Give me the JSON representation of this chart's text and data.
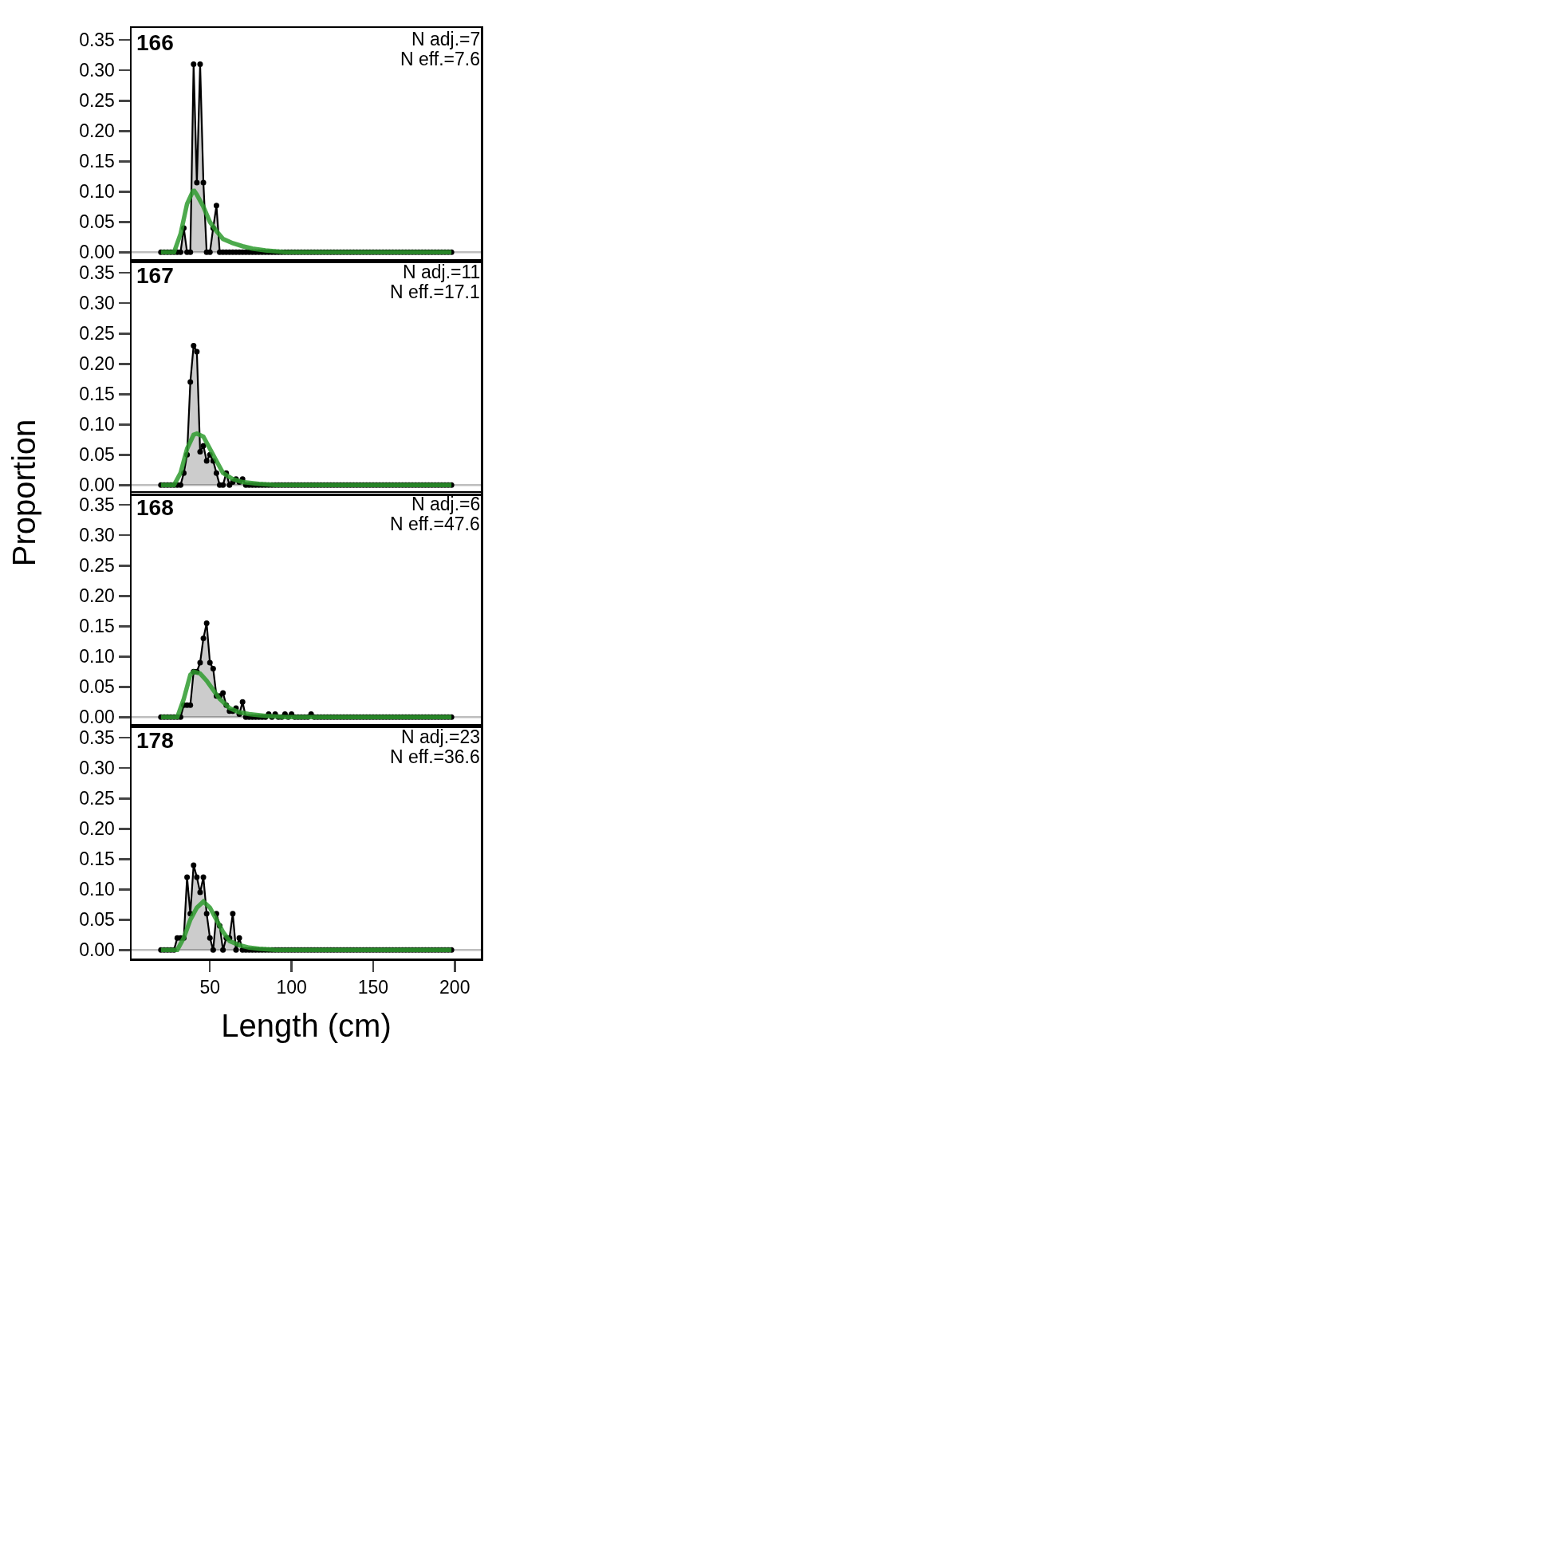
{
  "chart_data": [
    {
      "type": "area",
      "title": "166",
      "annotations": [
        "N adj.=7",
        "N eff.=7.6"
      ],
      "x": [
        20,
        22,
        24,
        26,
        28,
        30,
        32,
        34,
        36,
        38,
        40,
        42,
        44,
        46,
        48,
        50,
        52,
        54,
        56,
        58,
        60,
        62,
        64,
        66,
        68,
        70,
        72,
        74,
        76,
        78,
        80,
        82,
        84,
        86,
        88,
        90,
        92,
        94,
        96,
        98,
        100,
        102,
        104,
        106,
        108,
        110,
        112,
        114,
        116,
        118,
        120,
        122,
        124,
        126,
        128,
        130,
        132,
        134,
        136,
        138,
        140,
        142,
        144,
        146,
        148,
        150,
        152,
        154,
        156,
        158,
        160,
        162,
        164,
        166,
        168,
        170,
        172,
        174,
        176,
        178,
        180,
        182,
        184,
        186,
        188,
        190,
        192,
        194,
        196,
        198
      ],
      "xlim": [
        2,
        216
      ],
      "xticks": [
        50,
        100,
        150,
        200
      ],
      "ylim": [
        -0.014,
        0.37
      ],
      "yticks": [
        {
          "value": 0,
          "label": "0.00"
        },
        {
          "value": 0.05,
          "label": "0.05"
        },
        {
          "value": 0.1,
          "label": "0.10"
        },
        {
          "value": 0.15,
          "label": "0.15"
        },
        {
          "value": 0.2,
          "label": "0.20"
        },
        {
          "value": 0.25,
          "label": "0.25"
        },
        {
          "value": 0.3,
          "label": "0.30"
        },
        {
          "value": 0.35,
          "label": "0.35"
        }
      ],
      "tick_labels": "y",
      "ref_lines": [
        {
          "axis": "y",
          "value": 0,
          "color": "#bebebe"
        }
      ],
      "series": [
        {
          "color": "#000000",
          "marker": "circle",
          "values": [
            0,
            0,
            0,
            0,
            0,
            0,
            0,
            0.04,
            0,
            0,
            0.31,
            0.115,
            0.31,
            0.115,
            0,
            0,
            0.04,
            0.077,
            0,
            0,
            0,
            0,
            0,
            0,
            0,
            0,
            0,
            0,
            0,
            0,
            0,
            0,
            0,
            0,
            0,
            0,
            0,
            0,
            0,
            0,
            0,
            0,
            0,
            0,
            0,
            0,
            0,
            0,
            0,
            0,
            0,
            0,
            0,
            0,
            0,
            0,
            0,
            0,
            0,
            0,
            0,
            0,
            0,
            0,
            0,
            0,
            0,
            0,
            0,
            0,
            0,
            0,
            0,
            0,
            0,
            0,
            0,
            0,
            0,
            0,
            0,
            0,
            0,
            0,
            0,
            0,
            0,
            0,
            0,
            0
          ]
        },
        {
          "type": "line",
          "color": "#2e9b2e",
          "marker": "none",
          "x": [
            20,
            28,
            32,
            36,
            40,
            42,
            46,
            50,
            54,
            58,
            64,
            70,
            76,
            84,
            96,
            198
          ],
          "values": [
            0,
            0,
            0.03,
            0.08,
            0.103,
            0.095,
            0.075,
            0.05,
            0.035,
            0.022,
            0.015,
            0.01,
            0.006,
            0.003,
            0,
            0
          ]
        }
      ]
    },
    {
      "type": "area",
      "title": "167",
      "annotations": [
        "N adj.=11",
        "N eff.=17.1"
      ],
      "x": [
        20,
        22,
        24,
        26,
        28,
        30,
        32,
        34,
        36,
        38,
        40,
        42,
        44,
        46,
        48,
        50,
        52,
        54,
        56,
        58,
        60,
        62,
        64,
        66,
        68,
        70,
        72,
        74,
        76,
        78,
        80,
        82,
        84,
        86,
        88,
        90,
        92,
        94,
        96,
        98,
        100,
        102,
        104,
        106,
        108,
        110,
        112,
        114,
        116,
        118,
        120,
        122,
        124,
        126,
        128,
        130,
        132,
        134,
        136,
        138,
        140,
        142,
        144,
        146,
        148,
        150,
        152,
        154,
        156,
        158,
        160,
        162,
        164,
        166,
        168,
        170,
        172,
        174,
        176,
        178,
        180,
        182,
        184,
        186,
        188,
        190,
        192,
        194,
        196,
        198
      ],
      "xlim": [
        2,
        216
      ],
      "xticks": [
        50,
        100,
        150,
        200
      ],
      "ylim": [
        -0.014,
        0.37
      ],
      "yticks": [
        {
          "value": 0,
          "label": "0.00"
        },
        {
          "value": 0.05,
          "label": "0.05"
        },
        {
          "value": 0.1,
          "label": "0.10"
        },
        {
          "value": 0.15,
          "label": "0.15"
        },
        {
          "value": 0.2,
          "label": "0.20"
        },
        {
          "value": 0.25,
          "label": "0.25"
        },
        {
          "value": 0.3,
          "label": "0.30"
        },
        {
          "value": 0.35,
          "label": "0.35"
        }
      ],
      "tick_labels": "y",
      "ref_lines": [
        {
          "axis": "y",
          "value": 0,
          "color": "#bebebe"
        }
      ],
      "series": [
        {
          "color": "#000000",
          "marker": "circle",
          "values": [
            0,
            0,
            0,
            0,
            0,
            0,
            0,
            0.02,
            0.05,
            0.17,
            0.23,
            0.22,
            0.055,
            0.065,
            0.04,
            0.05,
            0.04,
            0.02,
            0,
            0,
            0.02,
            0,
            0.005,
            0.01,
            0.005,
            0.01,
            0,
            0,
            0,
            0,
            0,
            0,
            0,
            0,
            0,
            0,
            0,
            0,
            0,
            0,
            0,
            0,
            0,
            0,
            0,
            0,
            0,
            0,
            0,
            0,
            0,
            0,
            0,
            0,
            0,
            0,
            0,
            0,
            0,
            0,
            0,
            0,
            0,
            0,
            0,
            0,
            0,
            0,
            0,
            0,
            0,
            0,
            0,
            0,
            0,
            0,
            0,
            0,
            0,
            0,
            0,
            0,
            0,
            0,
            0,
            0,
            0,
            0,
            0,
            0
          ]
        },
        {
          "type": "line",
          "color": "#2e9b2e",
          "marker": "none",
          "x": [
            20,
            28,
            32,
            36,
            40,
            42,
            46,
            50,
            54,
            58,
            64,
            70,
            80,
            90,
            198
          ],
          "values": [
            0,
            0,
            0.02,
            0.06,
            0.083,
            0.085,
            0.08,
            0.06,
            0.04,
            0.02,
            0.01,
            0.005,
            0.002,
            0,
            0
          ]
        }
      ]
    },
    {
      "type": "area",
      "title": "168",
      "annotations": [
        "N adj.=6",
        "N eff.=47.6"
      ],
      "x": [
        20,
        22,
        24,
        26,
        28,
        30,
        32,
        34,
        36,
        38,
        40,
        42,
        44,
        46,
        48,
        50,
        52,
        54,
        56,
        58,
        60,
        62,
        64,
        66,
        68,
        70,
        72,
        74,
        76,
        78,
        80,
        82,
        84,
        86,
        88,
        90,
        92,
        94,
        96,
        98,
        100,
        102,
        104,
        106,
        108,
        110,
        112,
        114,
        116,
        118,
        120,
        122,
        124,
        126,
        128,
        130,
        132,
        134,
        136,
        138,
        140,
        142,
        144,
        146,
        148,
        150,
        152,
        154,
        156,
        158,
        160,
        162,
        164,
        166,
        168,
        170,
        172,
        174,
        176,
        178,
        180,
        182,
        184,
        186,
        188,
        190,
        192,
        194,
        196,
        198
      ],
      "xlim": [
        2,
        216
      ],
      "xticks": [
        50,
        100,
        150,
        200
      ],
      "ylim": [
        -0.014,
        0.37
      ],
      "yticks": [
        {
          "value": 0,
          "label": "0.00"
        },
        {
          "value": 0.05,
          "label": "0.05"
        },
        {
          "value": 0.1,
          "label": "0.10"
        },
        {
          "value": 0.15,
          "label": "0.15"
        },
        {
          "value": 0.2,
          "label": "0.20"
        },
        {
          "value": 0.25,
          "label": "0.25"
        },
        {
          "value": 0.3,
          "label": "0.30"
        },
        {
          "value": 0.35,
          "label": "0.35"
        }
      ],
      "tick_labels": "y",
      "ref_lines": [
        {
          "axis": "y",
          "value": 0,
          "color": "#bebebe"
        }
      ],
      "series": [
        {
          "color": "#000000",
          "marker": "circle",
          "values": [
            0,
            0,
            0,
            0,
            0,
            0,
            0,
            0.02,
            0.02,
            0.02,
            0.075,
            0.075,
            0.09,
            0.13,
            0.155,
            0.09,
            0.08,
            0.035,
            0.035,
            0.04,
            0.02,
            0.01,
            0.01,
            0.015,
            0.005,
            0.025,
            0,
            0,
            0,
            0,
            0,
            0,
            0,
            0.005,
            0,
            0.005,
            0,
            0,
            0.005,
            0,
            0.005,
            0,
            0,
            0,
            0,
            0,
            0.005,
            0,
            0,
            0,
            0,
            0,
            0,
            0,
            0,
            0,
            0,
            0,
            0,
            0,
            0,
            0,
            0,
            0,
            0,
            0,
            0,
            0,
            0,
            0,
            0,
            0,
            0,
            0,
            0,
            0,
            0,
            0,
            0,
            0,
            0,
            0,
            0,
            0,
            0,
            0,
            0,
            0,
            0,
            0
          ]
        },
        {
          "type": "line",
          "color": "#2e9b2e",
          "marker": "none",
          "x": [
            20,
            30,
            34,
            38,
            40,
            44,
            48,
            52,
            56,
            62,
            68,
            74,
            84,
            96,
            198
          ],
          "values": [
            0,
            0,
            0.03,
            0.07,
            0.075,
            0.072,
            0.06,
            0.045,
            0.03,
            0.015,
            0.008,
            0.005,
            0.002,
            0,
            0
          ]
        }
      ]
    },
    {
      "type": "area",
      "title": "178",
      "annotations": [
        "N adj.=23",
        "N eff.=36.6"
      ],
      "xlabel": "Length (cm)",
      "ylabel": "Proportion",
      "x": [
        20,
        22,
        24,
        26,
        28,
        30,
        32,
        34,
        36,
        38,
        40,
        42,
        44,
        46,
        48,
        50,
        52,
        54,
        56,
        58,
        60,
        62,
        64,
        66,
        68,
        70,
        72,
        74,
        76,
        78,
        80,
        82,
        84,
        86,
        88,
        90,
        92,
        94,
        96,
        98,
        100,
        102,
        104,
        106,
        108,
        110,
        112,
        114,
        116,
        118,
        120,
        122,
        124,
        126,
        128,
        130,
        132,
        134,
        136,
        138,
        140,
        142,
        144,
        146,
        148,
        150,
        152,
        154,
        156,
        158,
        160,
        162,
        164,
        166,
        168,
        170,
        172,
        174,
        176,
        178,
        180,
        182,
        184,
        186,
        188,
        190,
        192,
        194,
        196,
        198
      ],
      "xlim": [
        2,
        216
      ],
      "xticks": [
        50,
        100,
        150,
        200
      ],
      "ylim": [
        -0.014,
        0.37
      ],
      "yticks": [
        {
          "value": 0,
          "label": "0.00"
        },
        {
          "value": 0.05,
          "label": "0.05"
        },
        {
          "value": 0.1,
          "label": "0.10"
        },
        {
          "value": 0.15,
          "label": "0.15"
        },
        {
          "value": 0.2,
          "label": "0.20"
        },
        {
          "value": 0.25,
          "label": "0.25"
        },
        {
          "value": 0.3,
          "label": "0.30"
        },
        {
          "value": 0.35,
          "label": "0.35"
        }
      ],
      "ref_lines": [
        {
          "axis": "y",
          "value": 0,
          "color": "#bebebe"
        }
      ],
      "series": [
        {
          "color": "#000000",
          "marker": "circle",
          "values": [
            0,
            0,
            0,
            0,
            0,
            0.02,
            0.02,
            0.02,
            0.12,
            0.06,
            0.14,
            0.12,
            0.095,
            0.12,
            0.06,
            0.02,
            0,
            0.06,
            0.04,
            0,
            0.02,
            0.02,
            0.06,
            0,
            0.02,
            0,
            0,
            0,
            0,
            0,
            0,
            0,
            0,
            0,
            0,
            0,
            0,
            0,
            0,
            0,
            0,
            0,
            0,
            0,
            0,
            0,
            0,
            0,
            0,
            0,
            0,
            0,
            0,
            0,
            0,
            0,
            0,
            0,
            0,
            0,
            0,
            0,
            0,
            0,
            0,
            0,
            0,
            0,
            0,
            0,
            0,
            0,
            0,
            0,
            0,
            0,
            0,
            0,
            0,
            0,
            0,
            0,
            0,
            0,
            0,
            0,
            0,
            0,
            0,
            0
          ]
        },
        {
          "type": "line",
          "color": "#2e9b2e",
          "marker": "none",
          "x": [
            20,
            30,
            34,
            38,
            42,
            46,
            50,
            54,
            58,
            62,
            68,
            74,
            80,
            90,
            198
          ],
          "values": [
            0,
            0,
            0.02,
            0.05,
            0.07,
            0.08,
            0.07,
            0.05,
            0.03,
            0.015,
            0.008,
            0.004,
            0.002,
            0,
            0
          ]
        }
      ]
    }
  ]
}
